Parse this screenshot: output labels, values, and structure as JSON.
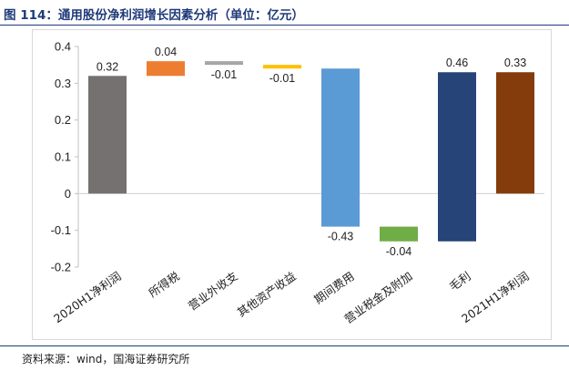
{
  "figure": {
    "title": "图 114：通用股份净利润增长因素分析（单位：亿元）",
    "source": "资料来源：wind，国海证券研究所"
  },
  "colors": {
    "title": "#1f3a7a",
    "rule": "#1f3a7a",
    "grid": "#d9d9d9"
  },
  "chart_data": {
    "type": "bar",
    "subtype": "waterfall",
    "title": "",
    "xlabel": "",
    "ylabel": "",
    "ylim": [
      -0.2,
      0.4
    ],
    "yticks": [
      -0.2,
      -0.1,
      0,
      0.1,
      0.2,
      0.3,
      0.4
    ],
    "ytick_labels": [
      "-0.2",
      "-0.1",
      "0",
      "0.1",
      "0.2",
      "0.3",
      "0.4"
    ],
    "grid": false,
    "legend": "none",
    "categories": [
      "2020H1净利润",
      "所得税",
      "营业外收支",
      "其他资产收益",
      "期间费用",
      "营业税金及附加",
      "毛利",
      "2021H1净利润"
    ],
    "values": [
      0.32,
      0.04,
      -0.01,
      -0.01,
      -0.43,
      -0.04,
      0.46,
      0.33
    ],
    "data_labels": [
      "0.32",
      "0.04",
      "-0.01",
      "-0.01",
      "-0.43",
      "-0.04",
      "0.46",
      "0.33"
    ],
    "bars": [
      {
        "start": 0,
        "end": 0.32,
        "color": "#767171"
      },
      {
        "start": 0.32,
        "end": 0.36,
        "color": "#ed7d31"
      },
      {
        "start": 0.36,
        "end": 0.35,
        "color": "#a5a5a5"
      },
      {
        "start": 0.35,
        "end": 0.34,
        "color": "#ffc000"
      },
      {
        "start": 0.34,
        "end": -0.09,
        "color": "#5b9bd5"
      },
      {
        "start": -0.09,
        "end": -0.13,
        "color": "#70ad47"
      },
      {
        "start": -0.13,
        "end": 0.33,
        "color": "#264478"
      },
      {
        "start": 0,
        "end": 0.33,
        "color": "#843c0c"
      }
    ]
  }
}
